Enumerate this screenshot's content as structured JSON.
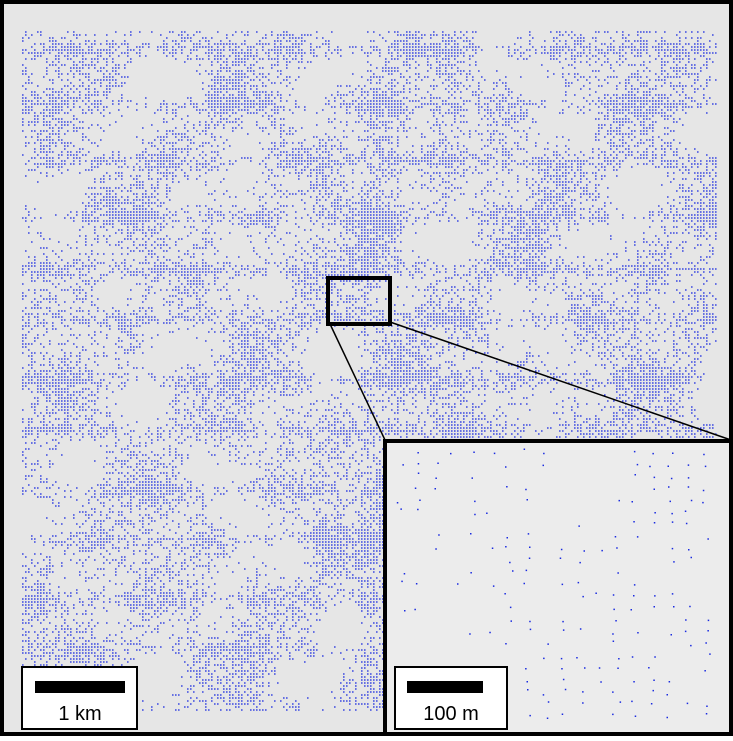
{
  "scale_bars": {
    "main": "1 km",
    "inset": "100 m"
  }
}
